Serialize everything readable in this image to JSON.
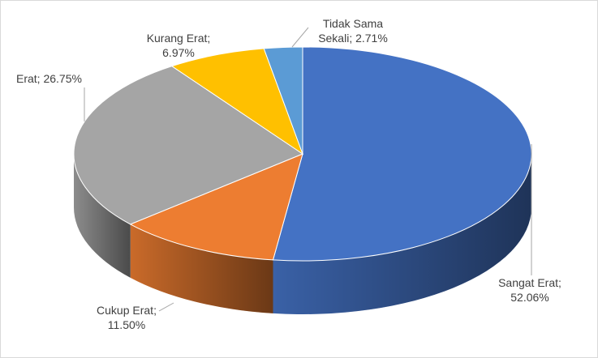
{
  "chart_data": {
    "type": "pie3d",
    "values": [
      52.06,
      11.5,
      26.75,
      6.97,
      2.71
    ],
    "value_labels": [
      "Sangat Erat; 52.06%",
      "Cukup Erat; 11.50%",
      "Erat; 26.75%",
      "Kurang Erat; 6.97%",
      "Tidak Sama Sekali; 2.71%"
    ],
    "colors": [
      "#4472c4",
      "#ed7d31",
      "#a5a5a5",
      "#ffc000",
      "#5b9bd5"
    ]
  }
}
